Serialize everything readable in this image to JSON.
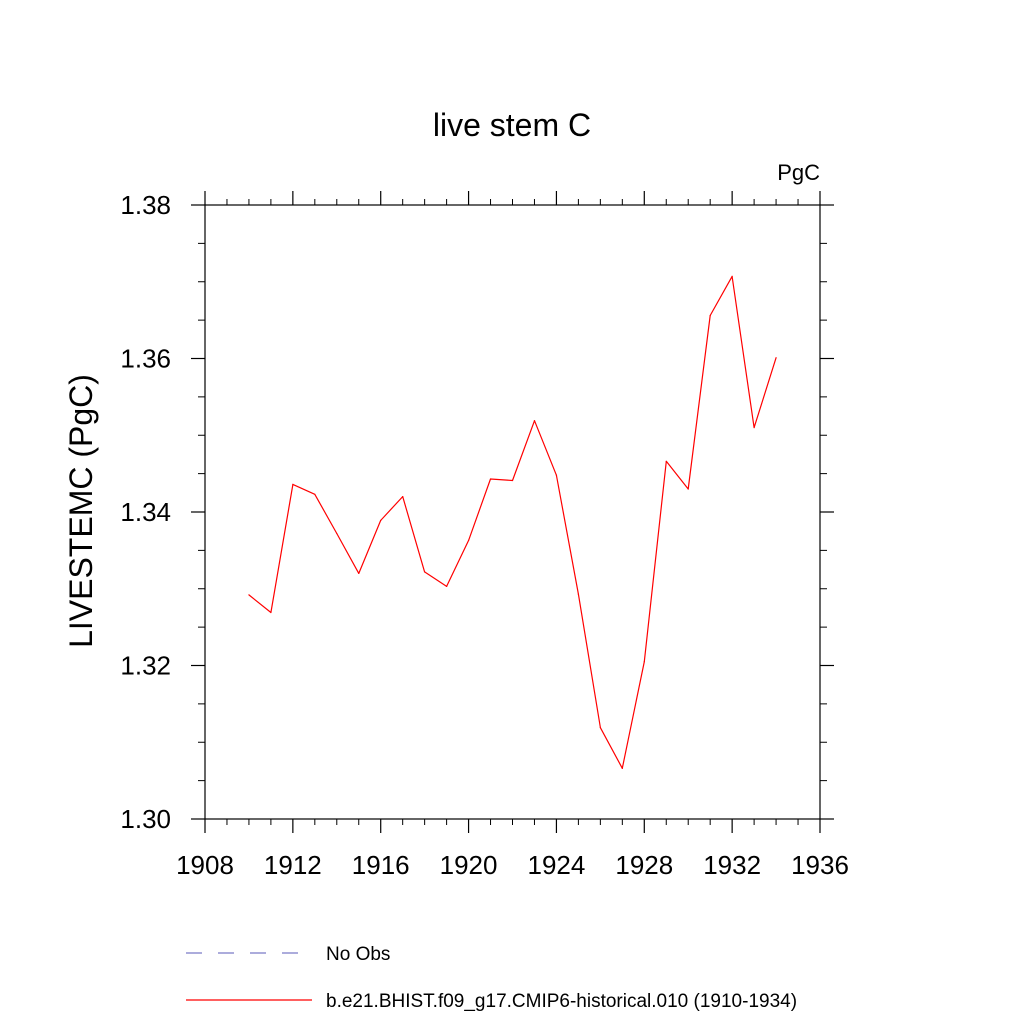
{
  "chart_data": {
    "type": "line",
    "title": "live stem C",
    "units_label": "PgC",
    "xlabel": "",
    "ylabel": "LIVESTEMC  (PgC)",
    "xlim": [
      1908,
      1936
    ],
    "ylim": [
      1.3,
      1.38
    ],
    "x_ticks": [
      1908,
      1912,
      1916,
      1920,
      1924,
      1928,
      1932,
      1936
    ],
    "x_tick_labels": [
      "1908",
      "1912",
      "1916",
      "1920",
      "1924",
      "1928",
      "1932",
      "1936"
    ],
    "y_ticks": [
      1.3,
      1.32,
      1.34,
      1.36,
      1.38
    ],
    "y_tick_labels": [
      "1.30",
      "1.32",
      "1.34",
      "1.36",
      "1.38"
    ],
    "grid": false,
    "legend_position": "bottom",
    "series": [
      {
        "name": "b.e21.BHIST.f09_g17.CMIP6-historical.010 (1910-1934)",
        "color": "#ff0000",
        "dash": "solid",
        "x": [
          1910,
          1911,
          1912,
          1913,
          1914,
          1915,
          1916,
          1917,
          1918,
          1919,
          1920,
          1921,
          1922,
          1923,
          1924,
          1925,
          1926,
          1927,
          1928,
          1929,
          1930,
          1931,
          1932,
          1933,
          1934
        ],
        "y": [
          1.3292,
          1.3269,
          1.3436,
          1.3423,
          1.3372,
          1.332,
          1.3389,
          1.342,
          1.3322,
          1.3303,
          1.3363,
          1.3443,
          1.3441,
          1.3519,
          1.3448,
          1.3293,
          1.3119,
          1.3066,
          1.3205,
          1.3466,
          1.343,
          1.3656,
          1.3707,
          1.351,
          1.3601
        ]
      }
    ],
    "legend": [
      {
        "label": "No Obs",
        "color": "#7b7bc8",
        "dash": "dashed"
      },
      {
        "label": "b.e21.BHIST.f09_g17.CMIP6-historical.010 (1910-1934)",
        "color": "#ff0000",
        "dash": "solid"
      }
    ]
  }
}
